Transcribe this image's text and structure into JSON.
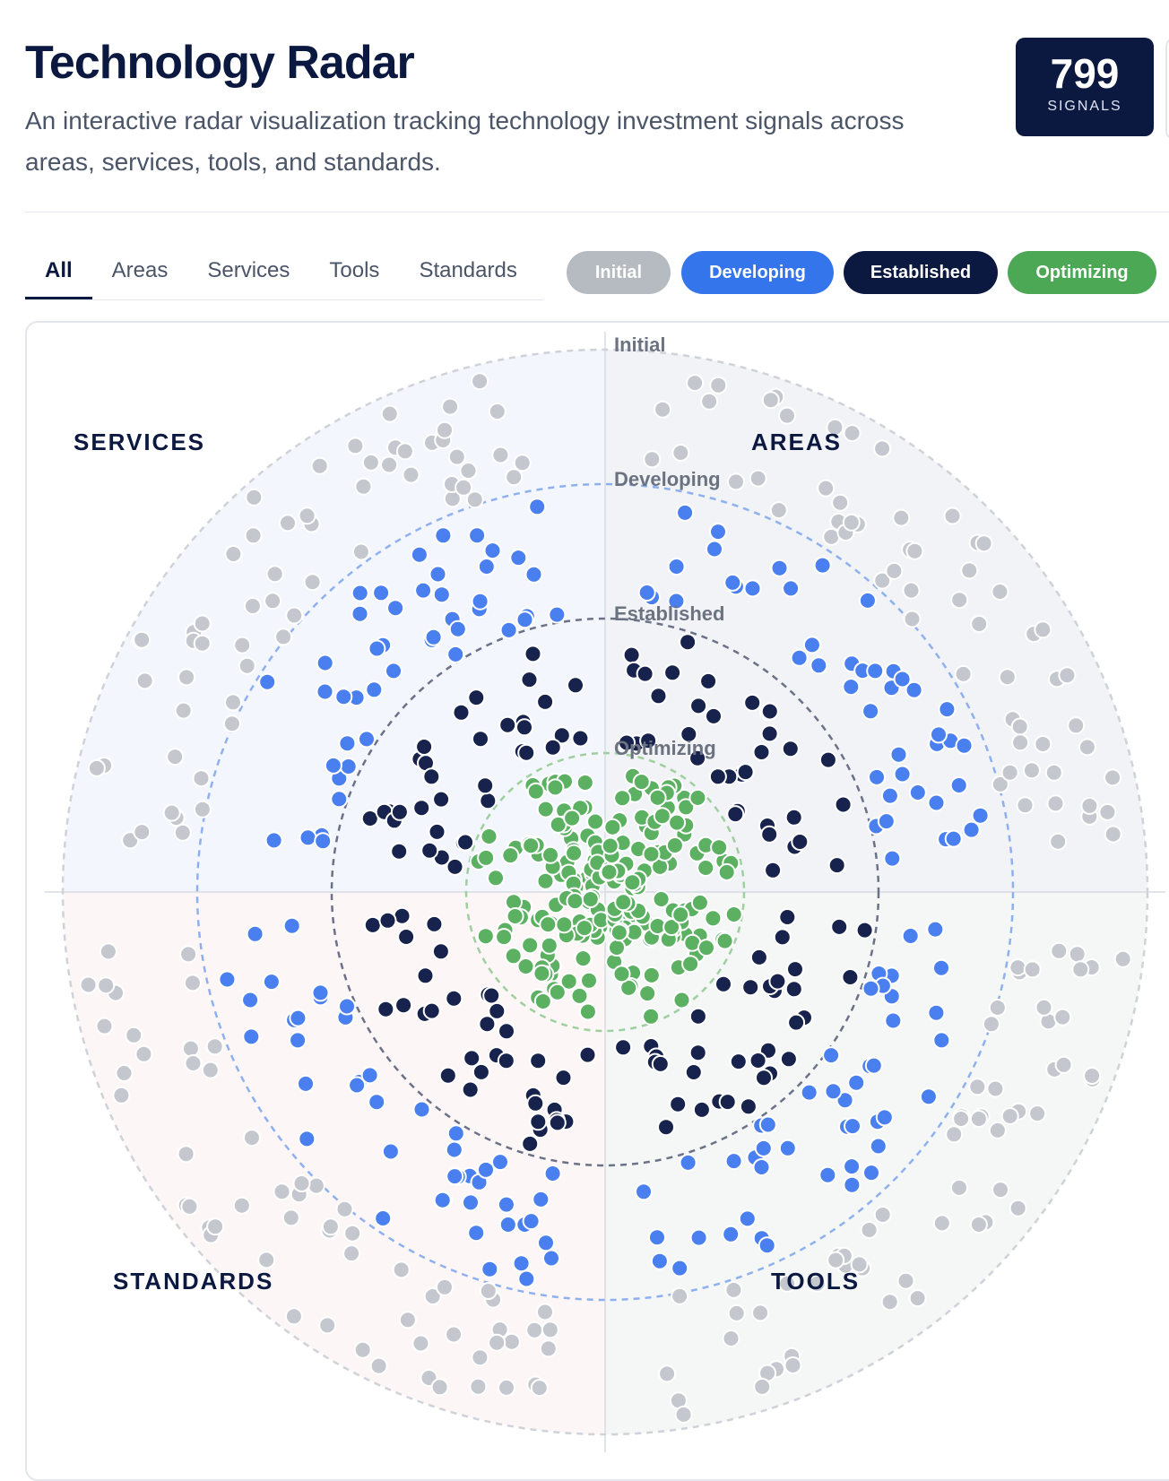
{
  "header": {
    "title": "Technology Radar",
    "subtitle": "An interactive radar visualization tracking technology investment signals across areas, services, tools, and standards."
  },
  "counter": {
    "value": "799",
    "label": "SIGNALS"
  },
  "tabs": [
    {
      "label": "All",
      "active": true
    },
    {
      "label": "Areas",
      "active": false
    },
    {
      "label": "Services",
      "active": false
    },
    {
      "label": "Tools",
      "active": false
    },
    {
      "label": "Standards",
      "active": false
    }
  ],
  "filters": [
    {
      "label": "Initial",
      "color": "#b6bac1"
    },
    {
      "label": "Developing",
      "color": "#3575ec"
    },
    {
      "label": "Established",
      "color": "#0b1840"
    },
    {
      "label": "Optimizing",
      "color": "#4da855"
    }
  ],
  "chart_data": {
    "type": "scatter",
    "title": "",
    "total_signals": 799,
    "rings": [
      "Initial",
      "Developing",
      "Established",
      "Optimizing"
    ],
    "ring_colors": {
      "Initial": "#c4c7cd",
      "Developing": "#4a7ff0",
      "Established": "#17234d",
      "Optimizing": "#5cb062"
    },
    "quadrants": [
      {
        "name": "SERVICES",
        "position": "top-left",
        "tint": "#f4f6fe"
      },
      {
        "name": "AREAS",
        "position": "top-right",
        "tint": "#f1f3f6"
      },
      {
        "name": "STANDARDS",
        "position": "bottom-left",
        "tint": "#fdf6f6"
      },
      {
        "name": "TOOLS",
        "position": "bottom-right",
        "tint": "#f4f7f6"
      }
    ],
    "estimated_counts_per_quadrant_and_ring": {
      "Initial": 60,
      "Developing": 45,
      "Established": 35,
      "Optimizing": 55
    }
  }
}
